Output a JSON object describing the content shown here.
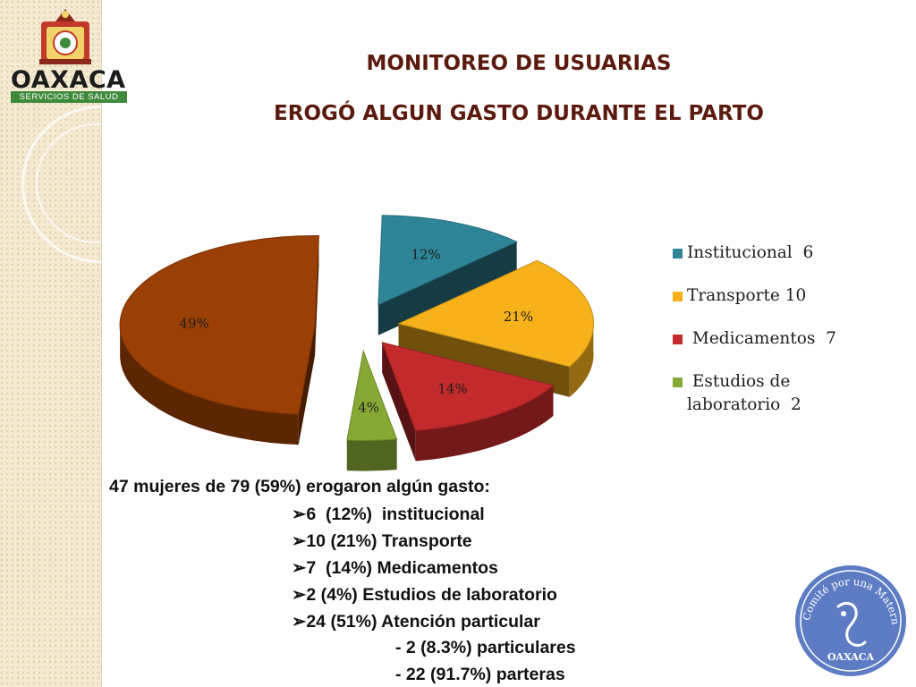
{
  "brand": {
    "name": "OAXACA",
    "subtitle": "SERVICIOS DE SALUD"
  },
  "title": "MONITOREO DE USUARIAS",
  "subtitle": "EROGÓ ALGUN GASTO DURANTE EL PARTO",
  "chart_data": {
    "type": "pie",
    "title": "",
    "slices": [
      {
        "label": "Institucional  6",
        "value": 6,
        "percent_label": "12%",
        "color": "#2f8598"
      },
      {
        "label": "Transporte 10",
        "value": 10,
        "percent_label": "21%",
        "color": "#f7b11a"
      },
      {
        "label": " Medicamentos  7",
        "value": 7,
        "percent_label": "14%",
        "color": "#c22a2b"
      },
      {
        "label": " Estudios de\nlaboratorio  2",
        "value": 2,
        "percent_label": "4%",
        "color": "#86a834"
      },
      {
        "label": "",
        "value": 24,
        "percent_label": "49%",
        "color": "#9a3f05"
      }
    ],
    "legend_position": "right",
    "exploded": true,
    "three_d": true
  },
  "summary": {
    "headline": "47 mujeres de 79 (59%) erogaron algún gasto:",
    "items": [
      "6  (12%)  institucional",
      "10 (21%) Transporte",
      "7  (14%) Medicamentos",
      "2 (4%) Estudios de laboratorio",
      "24 (51%) Atención particular"
    ],
    "subitems": [
      "- 2 (8.3%) particulares",
      "- 22 (91.7%) parteras"
    ],
    "bullet_glyph": "➢"
  },
  "seal": {
    "arc_text": "Comité por una Maternidad sin riesgos",
    "bottom_text": "OAXACA",
    "color": "#5e7cc4"
  }
}
